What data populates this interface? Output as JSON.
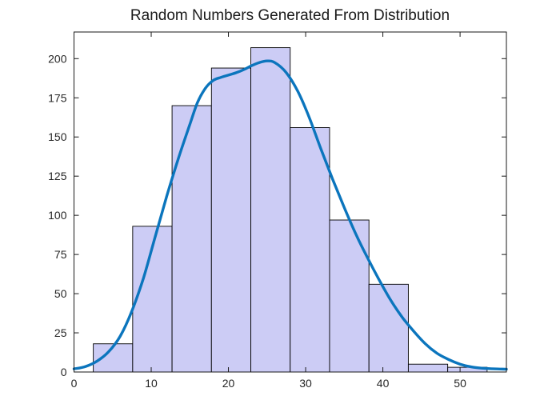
{
  "figure": {
    "title": "Random Numbers Generated From Distribution",
    "background": "#ffffff"
  },
  "chart_data": {
    "type": "bar",
    "subtype": "histogram-with-kernel-fit",
    "title": "Random Numbers Generated From Distribution",
    "xlabel": "",
    "ylabel": "",
    "xlim": [
      0,
      56
    ],
    "ylim": [
      0,
      217
    ],
    "xticks": [
      0,
      10,
      20,
      30,
      40,
      50
    ],
    "yticks": [
      0,
      25,
      50,
      75,
      100,
      125,
      150,
      175,
      200
    ],
    "grid": false,
    "legend_position": "none",
    "box": true,
    "tick_direction": "in",
    "bins": {
      "start": 2.5,
      "width": 5.1,
      "counts": [
        18,
        93,
        170,
        194,
        207,
        156,
        97,
        56,
        5,
        3
      ]
    },
    "series": [
      {
        "name": "histogram",
        "type": "bar",
        "values": [
          18,
          93,
          170,
          194,
          207,
          156,
          97,
          56,
          5,
          3
        ]
      },
      {
        "name": "kernel-fit-curve",
        "type": "line",
        "points": [
          [
            0,
            2
          ],
          [
            1.5,
            3.5
          ],
          [
            3,
            7
          ],
          [
            4.5,
            13
          ],
          [
            6,
            23
          ],
          [
            7.5,
            39
          ],
          [
            9,
            60
          ],
          [
            10.5,
            86
          ],
          [
            12,
            112
          ],
          [
            13.5,
            136
          ],
          [
            15,
            158
          ],
          [
            16,
            172
          ],
          [
            17,
            181
          ],
          [
            18,
            186
          ],
          [
            19,
            188
          ],
          [
            20,
            189.5
          ],
          [
            21,
            191
          ],
          [
            22,
            193
          ],
          [
            23,
            195.5
          ],
          [
            24,
            197.5
          ],
          [
            25,
            198.5
          ],
          [
            26,
            197.5
          ],
          [
            27.5,
            191
          ],
          [
            29,
            179
          ],
          [
            30.5,
            162
          ],
          [
            32,
            142
          ],
          [
            33.5,
            123
          ],
          [
            35,
            105
          ],
          [
            36.5,
            88
          ],
          [
            38,
            73
          ],
          [
            39.5,
            59
          ],
          [
            41,
            46
          ],
          [
            42.5,
            35
          ],
          [
            44,
            26
          ],
          [
            45.5,
            18
          ],
          [
            47,
            12
          ],
          [
            48.5,
            8
          ],
          [
            50,
            5
          ],
          [
            51.5,
            3.2
          ],
          [
            53,
            2.4
          ],
          [
            54.5,
            2
          ],
          [
            56,
            1.8
          ]
        ]
      }
    ],
    "colors": {
      "bar_fill": "#ccccf5",
      "bar_edge": "#000000",
      "curve": "#0b75bd",
      "axis": "#1a1a1a",
      "tick_text": "#262626"
    }
  }
}
